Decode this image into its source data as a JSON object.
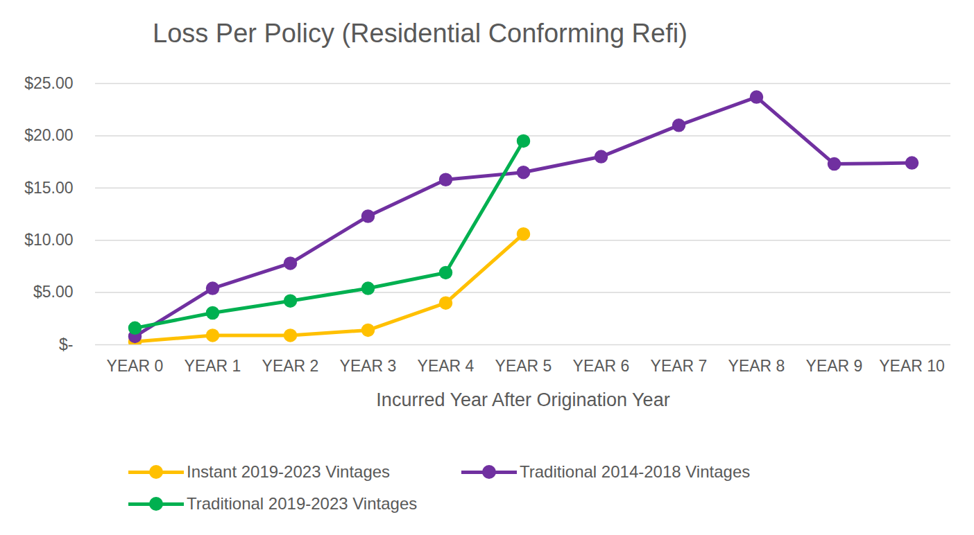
{
  "chart_data": {
    "type": "line",
    "title": "Loss Per Policy (Residential Conforming Refi)",
    "x_label": "Incurred Year After Origination Year",
    "categories": [
      "YEAR 0",
      "YEAR 1",
      "YEAR 2",
      "YEAR 3",
      "YEAR 4",
      "YEAR 5",
      "YEAR 6",
      "YEAR 7",
      "YEAR 8",
      "YEAR 9",
      "YEAR 10"
    ],
    "series": [
      {
        "name": "Instant 2019-2023 Vintages",
        "color": "#ffc000",
        "marker": "circle",
        "values": [
          0.3,
          0.9,
          0.9,
          1.4,
          4.0,
          10.6,
          null,
          null,
          null,
          null,
          null
        ]
      },
      {
        "name": "Traditional 2014-2018 Vintages",
        "color": "#7030a0",
        "marker": "circle",
        "values": [
          0.8,
          5.4,
          7.8,
          12.3,
          15.8,
          16.5,
          18.0,
          21.0,
          23.7,
          17.3,
          17.4
        ]
      },
      {
        "name": "Traditional 2019-2023 Vintages",
        "color": "#00b050",
        "marker": "circle",
        "values": [
          1.6,
          3.05,
          4.2,
          5.4,
          6.9,
          19.5,
          null,
          null,
          null,
          null,
          null
        ]
      }
    ],
    "ylim": [
      0,
      25
    ],
    "yticks": [
      {
        "value": 0,
        "label": "$-"
      },
      {
        "value": 5,
        "label": "$5.00"
      },
      {
        "value": 10,
        "label": "$10.00"
      },
      {
        "value": 15,
        "label": "$15.00"
      },
      {
        "value": 20,
        "label": "$20.00"
      },
      {
        "value": 25,
        "label": "$25.00"
      }
    ],
    "grid": true,
    "legend": "bottom"
  }
}
